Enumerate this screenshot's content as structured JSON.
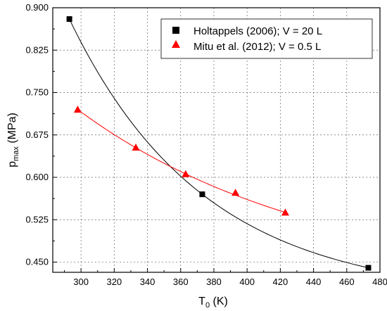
{
  "chart_data": {
    "type": "scatter",
    "xlabel": "T",
    "xlabel_sub": "0",
    "xlabel_unit": " (K)",
    "ylabel": "p",
    "ylabel_sub": "max",
    "ylabel_unit": " (MPa)",
    "xlim": [
      283,
      480
    ],
    "ylim": [
      0.432,
      0.9
    ],
    "xticks": [
      300,
      320,
      340,
      360,
      380,
      400,
      420,
      440,
      460,
      480
    ],
    "yticks": [
      0.45,
      0.525,
      0.6,
      0.675,
      0.75,
      0.825,
      0.9
    ],
    "ytick_labels": [
      "0.450",
      "0.525",
      "0.600",
      "0.675",
      "0.750",
      "0.825",
      "0.900"
    ],
    "grid": true,
    "legend_position": "top-right",
    "series": [
      {
        "name": "Holtappels (2006); V = 20 L",
        "marker": "square",
        "color": "#000000",
        "x": [
          293,
          373,
          473
        ],
        "y": [
          0.88,
          0.57,
          0.44
        ],
        "fit_x": [
          293,
          473
        ]
      },
      {
        "name": "Mitu et al. (2012); V = 0.5 L",
        "marker": "triangle",
        "color": "#ff0000",
        "x": [
          298,
          333,
          363,
          393,
          423
        ],
        "y": [
          0.72,
          0.653,
          0.606,
          0.573,
          0.538
        ],
        "fit_x": [
          298,
          423
        ]
      }
    ]
  }
}
